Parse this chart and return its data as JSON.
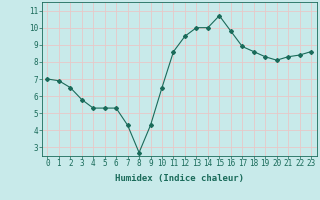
{
  "x": [
    0,
    1,
    2,
    3,
    4,
    5,
    6,
    7,
    8,
    9,
    10,
    11,
    12,
    13,
    14,
    15,
    16,
    17,
    18,
    19,
    20,
    21,
    22,
    23
  ],
  "y": [
    7.0,
    6.9,
    6.5,
    5.8,
    5.3,
    5.3,
    5.3,
    4.3,
    2.7,
    4.3,
    6.5,
    8.6,
    9.5,
    10.0,
    10.0,
    10.7,
    9.8,
    8.9,
    8.6,
    8.3,
    8.1,
    8.3,
    8.4,
    8.6
  ],
  "line_color": "#1a6b5a",
  "marker": "D",
  "marker_size": 2,
  "bg_color": "#c8eaea",
  "grid_color": "#e8c8c8",
  "xlabel": "Humidex (Indice chaleur)",
  "xlim": [
    -0.5,
    23.5
  ],
  "ylim": [
    2.5,
    11.5
  ],
  "yticks": [
    3,
    4,
    5,
    6,
    7,
    8,
    9,
    10,
    11
  ],
  "xticks": [
    0,
    1,
    2,
    3,
    4,
    5,
    6,
    7,
    8,
    9,
    10,
    11,
    12,
    13,
    14,
    15,
    16,
    17,
    18,
    19,
    20,
    21,
    22,
    23
  ],
  "tick_color": "#1a6b5a",
  "label_fontsize": 5.5,
  "xlabel_fontsize": 6.5,
  "axis_color": "#1a6b5a",
  "linewidth": 0.8
}
